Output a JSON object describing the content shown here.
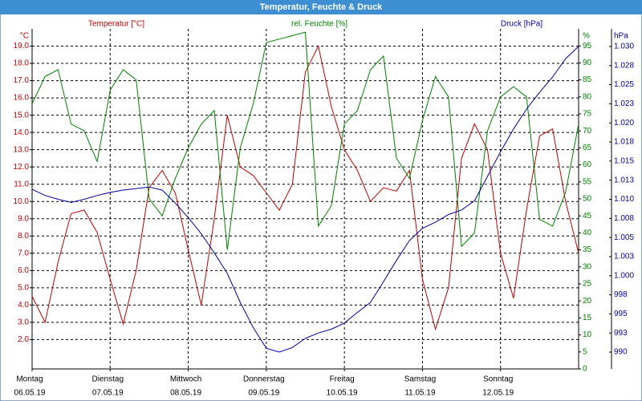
{
  "chart_data": {
    "type": "line",
    "title": "Temperatur, Feuchte & Druck",
    "x": [
      0,
      4,
      8,
      12,
      16,
      20,
      24,
      28,
      32,
      36,
      40,
      44,
      48,
      52,
      56,
      60,
      64,
      68,
      72,
      76,
      80,
      84,
      88,
      92,
      96,
      100,
      104,
      108,
      112,
      116,
      120,
      124,
      128,
      132,
      136,
      140,
      144,
      148,
      152,
      156,
      160,
      164,
      168
    ],
    "xlim": [
      0,
      168
    ],
    "xticks": [
      {
        "value": 0,
        "label": "Montag",
        "date": "06.05.19"
      },
      {
        "value": 24,
        "label": "Dienstag",
        "date": "07.05.19"
      },
      {
        "value": 48,
        "label": "Mittwoch",
        "date": "08.05.19"
      },
      {
        "value": 72,
        "label": "Donnerstag",
        "date": "09.05.19"
      },
      {
        "value": 96,
        "label": "Freitag",
        "date": "10.05.19"
      },
      {
        "value": 120,
        "label": "Samstag",
        "date": "11.05.19"
      },
      {
        "value": 144,
        "label": "Sonntag",
        "date": "12.05.19"
      }
    ],
    "ylim": [
      0.3,
      20.0
    ],
    "y_unit": "°C",
    "yticks": [
      {
        "value": 2,
        "label": "2.0"
      },
      {
        "value": 3,
        "label": "3.0"
      },
      {
        "value": 4,
        "label": "4.0"
      },
      {
        "value": 5,
        "label": "5.0"
      },
      {
        "value": 6,
        "label": "6.0"
      },
      {
        "value": 7,
        "label": "7.0"
      },
      {
        "value": 8,
        "label": "8.0"
      },
      {
        "value": 9,
        "label": "9.0"
      },
      {
        "value": 10,
        "label": "10.0"
      },
      {
        "value": 11,
        "label": "11.0"
      },
      {
        "value": 12,
        "label": "12.0"
      },
      {
        "value": 13,
        "label": "13.0"
      },
      {
        "value": 14,
        "label": "14.0"
      },
      {
        "value": 15,
        "label": "15.0"
      },
      {
        "value": 16,
        "label": "16.0"
      },
      {
        "value": 17,
        "label": "17.0"
      },
      {
        "value": 18,
        "label": "18.0"
      },
      {
        "value": 19,
        "label": "19.0"
      }
    ],
    "y2lim": [
      0,
      100
    ],
    "y2_unit": "%",
    "y2ticks": [
      0,
      5,
      10,
      15,
      20,
      25,
      30,
      35,
      40,
      45,
      50,
      55,
      60,
      65,
      70,
      75,
      80,
      85,
      90,
      95
    ],
    "y3lim": [
      987.8,
      1032.3
    ],
    "y3_unit": "hPa",
    "y3ticks": [
      990,
      {
        "value": 992.5,
        "label": "993"
      },
      995,
      {
        "value": 997.5,
        "label": "998"
      },
      {
        "value": 1000,
        "label": "1.000"
      },
      {
        "value": 1002.5,
        "label": "1.003"
      },
      {
        "value": 1005,
        "label": "1.005"
      },
      {
        "value": 1007.5,
        "label": "1.008"
      },
      {
        "value": 1010,
        "label": "1.010"
      },
      {
        "value": 1012.5,
        "label": "1.013"
      },
      {
        "value": 1015,
        "label": "1.015"
      },
      {
        "value": 1017.5,
        "label": "1.018"
      },
      {
        "value": 1020,
        "label": "1.020"
      },
      {
        "value": 1022.5,
        "label": "1.023"
      },
      {
        "value": 1025,
        "label": "1.025"
      },
      {
        "value": 1027.5,
        "label": "1.028"
      },
      {
        "value": 1030,
        "label": "1.030"
      }
    ],
    "grid": true,
    "series": [
      {
        "name": "Temperatur [°C]",
        "color": "#c00000",
        "axis": "y",
        "values": [
          4.5,
          3.0,
          6.5,
          9.3,
          9.5,
          8.2,
          5.5,
          2.9,
          6.0,
          10.8,
          11.8,
          10.5,
          7.2,
          4.0,
          9.0,
          15.0,
          12.0,
          11.5,
          10.5,
          9.5,
          11.0,
          17.5,
          19.0,
          15.5,
          13.0,
          11.8,
          10.0,
          10.8,
          10.6,
          11.8,
          5.5,
          2.6,
          5.0,
          12.5,
          14.5,
          13.0,
          7.0,
          4.4,
          9.5,
          13.8,
          14.2,
          10.0,
          7.0
        ]
      },
      {
        "name": "rel. Feuchte [%]",
        "color": "#008000",
        "axis": "y2",
        "values": [
          78,
          86,
          88,
          72,
          70,
          61,
          82,
          88,
          85,
          50,
          45,
          56,
          65,
          72,
          76,
          35,
          65,
          78,
          96,
          97,
          98,
          99,
          42,
          48,
          72,
          76,
          88,
          92,
          62,
          56,
          73,
          86,
          80,
          36,
          40,
          70,
          80,
          83,
          80,
          44,
          42,
          52,
          72
        ]
      },
      {
        "name": "Druck [hPa]",
        "color": "#0000a0",
        "axis": "y3",
        "values": [
          1011.3,
          1010.5,
          1010.0,
          1009.6,
          1010.0,
          1010.5,
          1010.9,
          1011.2,
          1011.4,
          1011.6,
          1011.2,
          1009.5,
          1007.6,
          1005.5,
          1003.0,
          1000.3,
          996.5,
          993.2,
          990.5,
          990.0,
          990.6,
          991.8,
          992.5,
          993.0,
          993.8,
          995.2,
          996.5,
          999.2,
          1002.0,
          1004.6,
          1006.2,
          1007.0,
          1008.0,
          1008.6,
          1009.8,
          1013.0,
          1016.2,
          1019.2,
          1021.8,
          1024.0,
          1026.0,
          1028.4,
          1030.0
        ]
      }
    ]
  }
}
